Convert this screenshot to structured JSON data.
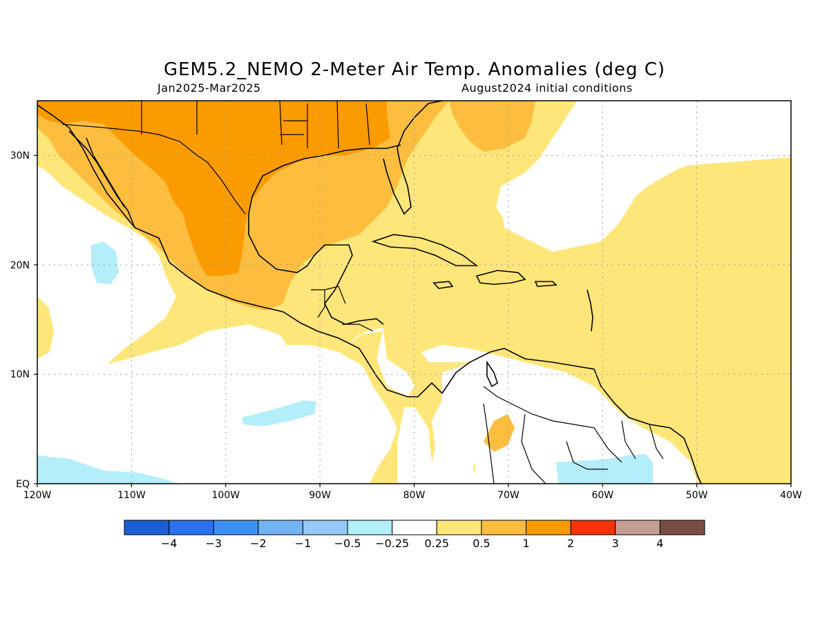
{
  "title": "GEM5.2_NEMO 2-Meter Air Temp. Anomalies (deg C)",
  "subtitle_left": "Jan2025-Mar2025",
  "subtitle_right": "August2024 initial conditions",
  "lon_labels": [
    "120W",
    "110W",
    "100W",
    "90W",
    "80W",
    "70W",
    "60W",
    "50W",
    "40W"
  ],
  "lat_labels": [
    "EQ",
    "10N",
    "20N",
    "30N"
  ],
  "colorbar": {
    "colors": [
      "#1a5fd4",
      "#2a72ee",
      "#3d8ff2",
      "#73b2f5",
      "#97c8f7",
      "#b4eefa",
      "#ffffff",
      "#fee67a",
      "#fdbe3f",
      "#fa9b00",
      "#f5320a",
      "#c59e93",
      "#7a4d44"
    ],
    "labels": [
      "-4",
      "-3",
      "-2",
      "-1",
      "-0.5",
      "-0.25",
      "0.25",
      "0.5",
      "1",
      "2",
      "3",
      "4"
    ]
  },
  "map_extent": {
    "lon": [
      -120,
      -40
    ],
    "lat": [
      0,
      35
    ]
  }
}
